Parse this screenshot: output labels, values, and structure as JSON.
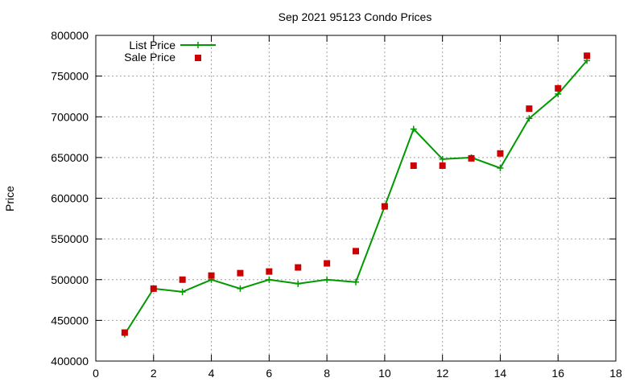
{
  "chart_data": {
    "type": "line",
    "title": "Sep 2021 95123 Condo Prices",
    "xlabel": "",
    "ylabel": "Price",
    "xlim": [
      0,
      18
    ],
    "ylim": [
      400000,
      800000
    ],
    "x_ticks": [
      0,
      2,
      4,
      6,
      8,
      10,
      12,
      14,
      16,
      18
    ],
    "y_ticks": [
      400000,
      450000,
      500000,
      550000,
      600000,
      650000,
      700000,
      750000,
      800000
    ],
    "grid": true,
    "legend_position": "top-left",
    "series": [
      {
        "name": "List Price",
        "style": "line+cross",
        "color": "#009900",
        "x": [
          1,
          2,
          3,
          4,
          5,
          6,
          7,
          8,
          9,
          10,
          11,
          12,
          13,
          14,
          15,
          16,
          17
        ],
        "values": [
          433000,
          489000,
          485000,
          500000,
          489000,
          500000,
          495000,
          500000,
          497000,
          590000,
          685000,
          648000,
          650000,
          637000,
          698000,
          728000,
          769000
        ]
      },
      {
        "name": "Sale Price",
        "style": "square-points",
        "color": "#cc0000",
        "x": [
          1,
          2,
          3,
          4,
          5,
          6,
          7,
          8,
          9,
          10,
          11,
          12,
          13,
          14,
          15,
          16,
          17
        ],
        "values": [
          435000,
          489000,
          500000,
          505000,
          508000,
          510000,
          515000,
          520000,
          535000,
          590000,
          640000,
          640000,
          649000,
          655000,
          710000,
          735000,
          775000
        ]
      }
    ]
  }
}
